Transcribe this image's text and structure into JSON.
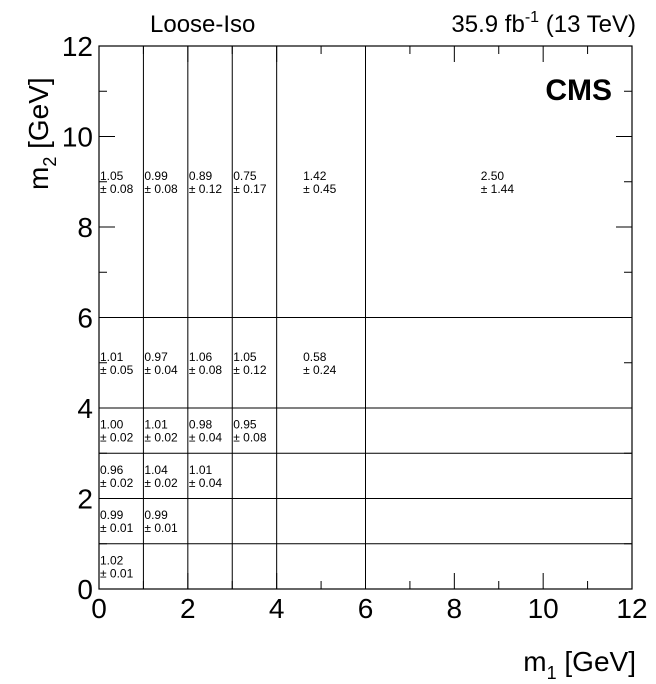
{
  "chart_data": {
    "type": "heatmap",
    "title_left": "Loose-Iso",
    "lumi": {
      "value": "35.9 fb",
      "exp": "-1",
      "energy": " (13 TeV)"
    },
    "experiment": "CMS",
    "xlabel": {
      "base": "m",
      "sub": "1",
      "unit": " [GeV]"
    },
    "ylabel": {
      "base": "m",
      "sub": "2",
      "unit": " [GeV]"
    },
    "xlim": [
      0,
      12
    ],
    "ylim": [
      0,
      12
    ],
    "x_ticks": [
      "0",
      "2",
      "4",
      "6",
      "8",
      "10",
      "12"
    ],
    "y_ticks": [
      "0",
      "2",
      "4",
      "6",
      "8",
      "10",
      "12"
    ],
    "x_bin_edges": [
      0,
      1,
      2,
      3,
      4,
      6,
      12
    ],
    "y_bin_edges": [
      0,
      1,
      2,
      3,
      4,
      6,
      12
    ],
    "cells": [
      {
        "m1": [
          0,
          1
        ],
        "m2": [
          0,
          1
        ],
        "value": "1.02",
        "error": "± 0.01"
      },
      {
        "m1": [
          0,
          1
        ],
        "m2": [
          1,
          2
        ],
        "value": "0.99",
        "error": "± 0.01"
      },
      {
        "m1": [
          1,
          2
        ],
        "m2": [
          1,
          2
        ],
        "value": "0.99",
        "error": "± 0.01"
      },
      {
        "m1": [
          0,
          1
        ],
        "m2": [
          2,
          3
        ],
        "value": "0.96",
        "error": "± 0.02"
      },
      {
        "m1": [
          1,
          2
        ],
        "m2": [
          2,
          3
        ],
        "value": "1.04",
        "error": "± 0.02"
      },
      {
        "m1": [
          2,
          3
        ],
        "m2": [
          2,
          3
        ],
        "value": "1.01",
        "error": "± 0.04"
      },
      {
        "m1": [
          0,
          1
        ],
        "m2": [
          3,
          4
        ],
        "value": "1.00",
        "error": "± 0.02"
      },
      {
        "m1": [
          1,
          2
        ],
        "m2": [
          3,
          4
        ],
        "value": "1.01",
        "error": "± 0.02"
      },
      {
        "m1": [
          2,
          3
        ],
        "m2": [
          3,
          4
        ],
        "value": "0.98",
        "error": "± 0.04"
      },
      {
        "m1": [
          3,
          4
        ],
        "m2": [
          3,
          4
        ],
        "value": "0.95",
        "error": "± 0.08"
      },
      {
        "m1": [
          0,
          1
        ],
        "m2": [
          4,
          6
        ],
        "value": "1.01",
        "error": "± 0.05"
      },
      {
        "m1": [
          1,
          2
        ],
        "m2": [
          4,
          6
        ],
        "value": "0.97",
        "error": "± 0.04"
      },
      {
        "m1": [
          2,
          3
        ],
        "m2": [
          4,
          6
        ],
        "value": "1.06",
        "error": "± 0.08"
      },
      {
        "m1": [
          3,
          4
        ],
        "m2": [
          4,
          6
        ],
        "value": "1.05",
        "error": "± 0.12"
      },
      {
        "m1": [
          4,
          6
        ],
        "m2": [
          4,
          6
        ],
        "value": "0.58",
        "error": "± 0.24"
      },
      {
        "m1": [
          0,
          1
        ],
        "m2": [
          6,
          12
        ],
        "value": "1.05",
        "error": "± 0.08"
      },
      {
        "m1": [
          1,
          2
        ],
        "m2": [
          6,
          12
        ],
        "value": "0.99",
        "error": "± 0.08"
      },
      {
        "m1": [
          2,
          3
        ],
        "m2": [
          6,
          12
        ],
        "value": "0.89",
        "error": "± 0.12"
      },
      {
        "m1": [
          3,
          4
        ],
        "m2": [
          6,
          12
        ],
        "value": "0.75",
        "error": "± 0.17"
      },
      {
        "m1": [
          4,
          6
        ],
        "m2": [
          6,
          12
        ],
        "value": "1.42",
        "error": "± 0.45"
      },
      {
        "m1": [
          6,
          12
        ],
        "m2": [
          6,
          12
        ],
        "value": "2.50",
        "error": "± 1.44"
      }
    ]
  }
}
